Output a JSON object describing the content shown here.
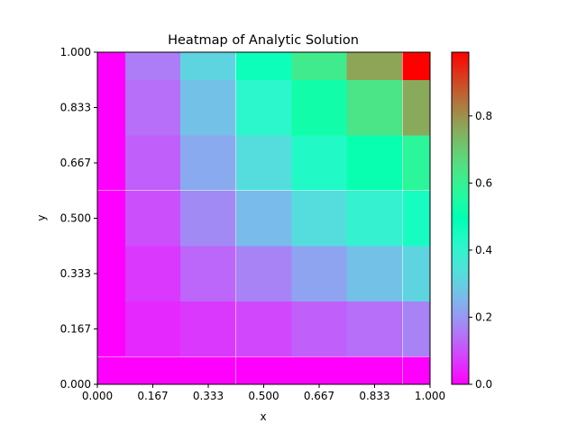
{
  "chart_data": {
    "type": "heatmap",
    "title": "Heatmap of Analytic Solution",
    "xlabel": "x",
    "ylabel": "y",
    "xlim": [
      0,
      1
    ],
    "ylim": [
      0,
      1
    ],
    "x_ticks": [
      "0.000",
      "0.167",
      "0.333",
      "0.500",
      "0.667",
      "0.833",
      "1.000"
    ],
    "y_ticks": [
      "0.000",
      "0.167",
      "0.333",
      "0.500",
      "0.667",
      "0.833",
      "1.000"
    ],
    "colorbar": {
      "colormap": "rainbow",
      "range": [
        0,
        0.99
      ],
      "ticks": [
        "0.0",
        "0.2",
        "0.4",
        "0.6",
        "0.8"
      ],
      "tick_values": [
        0,
        0.2,
        0.4,
        0.6,
        0.8
      ]
    },
    "grid": {
      "x": [
        0.0,
        0.167,
        0.333,
        0.5,
        0.667,
        0.833,
        1.0
      ],
      "y": [
        0.0,
        0.167,
        0.333,
        0.5,
        0.667,
        0.833,
        1.0
      ],
      "values": [
        [
          0.0,
          0.0,
          0.0,
          0.0,
          0.0,
          0.0,
          0.0
        ],
        [
          0.0,
          0.05,
          0.07,
          0.09,
          0.12,
          0.14,
          0.17
        ],
        [
          0.0,
          0.07,
          0.13,
          0.17,
          0.22,
          0.27,
          0.31
        ],
        [
          0.0,
          0.1,
          0.18,
          0.26,
          0.33,
          0.39,
          0.45
        ],
        [
          0.0,
          0.12,
          0.23,
          0.33,
          0.43,
          0.51,
          0.58
        ],
        [
          0.0,
          0.14,
          0.27,
          0.41,
          0.53,
          0.64,
          0.76
        ],
        [
          0.0,
          0.16,
          0.31,
          0.47,
          0.62,
          0.77,
          0.99
        ]
      ]
    }
  }
}
